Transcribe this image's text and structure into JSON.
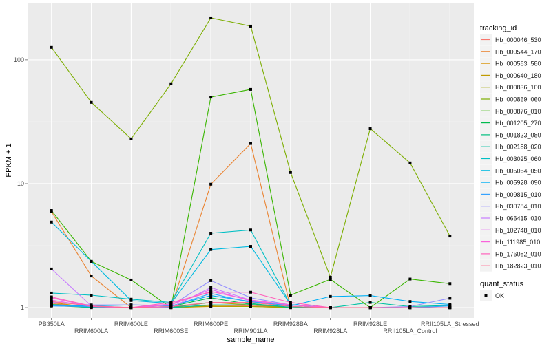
{
  "chart_data": {
    "type": "line",
    "title": "",
    "xlabel": "sample_name",
    "ylabel": "FPKM + 1",
    "y_scale": "log10",
    "ylim": [
      0.826,
      285
    ],
    "y_ticks": [
      1,
      10,
      100
    ],
    "y_tick_labels": [
      "1",
      "10",
      "100"
    ],
    "grid": true,
    "legend_placement": "right",
    "categories": [
      "PB350LA",
      "RRIM600LA",
      "RRIM600LE",
      "RRIM600SE",
      "RRIM600PE",
      "RRIM901LA",
      "RRIM928BA",
      "RRIM928LA",
      "RRIM928LE",
      "RRII105LA_Control",
      "RRII105LA_Stressed"
    ],
    "legend_title": "tracking_id",
    "series": [
      {
        "name": "Hb_000046_530",
        "color": "#F8766D",
        "values": [
          1.08,
          1,
          1,
          1,
          1.05,
          1.03,
          1,
          1,
          1,
          1,
          1
        ]
      },
      {
        "name": "Hb_000544_170",
        "color": "#EA8331",
        "values": [
          5.94,
          1.8,
          1,
          1,
          9.9,
          21.1,
          1,
          1,
          1,
          1,
          1
        ]
      },
      {
        "name": "Hb_000563_580",
        "color": "#D89000",
        "values": [
          1.1,
          1,
          1,
          1,
          1.02,
          1.02,
          1,
          1,
          1,
          1,
          1
        ]
      },
      {
        "name": "Hb_000640_180",
        "color": "#C09B00",
        "values": [
          1.05,
          1.02,
          1,
          1,
          1.1,
          1.05,
          1,
          1,
          1,
          1,
          1
        ]
      },
      {
        "name": "Hb_000836_100",
        "color": "#A3A500",
        "values": [
          1.04,
          1,
          1,
          1,
          1.03,
          1.02,
          1,
          1,
          1,
          1,
          1
        ]
      },
      {
        "name": "Hb_000869_060",
        "color": "#7CAE00",
        "values": [
          126,
          45.3,
          23,
          64,
          218,
          187,
          12.3,
          1.76,
          27.8,
          14.7,
          3.78
        ]
      },
      {
        "name": "Hb_000876_010",
        "color": "#39B600",
        "values": [
          6.07,
          2.36,
          1.67,
          1,
          50,
          57.7,
          1.26,
          1.69,
          1,
          1.7,
          1.56
        ]
      },
      {
        "name": "Hb_001205_270",
        "color": "#00BB4E",
        "values": [
          1.06,
          1.02,
          1,
          1.02,
          1.2,
          1.06,
          1.02,
          1,
          1,
          1,
          1
        ]
      },
      {
        "name": "Hb_001823_080",
        "color": "#00BF7D",
        "values": [
          1.04,
          1.01,
          1,
          1.01,
          1.1,
          1.08,
          1,
          1,
          1,
          1,
          1
        ]
      },
      {
        "name": "Hb_002188_020",
        "color": "#00C1A3",
        "values": [
          1.05,
          1,
          1,
          1,
          1.05,
          1.05,
          1.02,
          1,
          1.1,
          1.02,
          1.04
        ]
      },
      {
        "name": "Hb_003025_060",
        "color": "#00BFC4",
        "values": [
          1.31,
          1.26,
          1.17,
          1.1,
          3.98,
          4.23,
          1.05,
          1,
          1,
          1,
          1
        ]
      },
      {
        "name": "Hb_005054_050",
        "color": "#00BAE0",
        "values": [
          4.9,
          2.36,
          1.14,
          1.08,
          2.94,
          3.12,
          1.06,
          1,
          1,
          1,
          1
        ]
      },
      {
        "name": "Hb_005928_090",
        "color": "#00B0F6",
        "values": [
          1.04,
          1.03,
          1.05,
          1.03,
          1.25,
          1.12,
          1.03,
          1.23,
          1.25,
          1.12,
          1.06
        ]
      },
      {
        "name": "Hb_009815_010",
        "color": "#35A2FF",
        "values": [
          1.03,
          1.02,
          1,
          1.02,
          1.3,
          1.1,
          1.05,
          1,
          1,
          1,
          1.03
        ]
      },
      {
        "name": "Hb_030784_010",
        "color": "#9590FF",
        "values": [
          1.1,
          1.05,
          1.05,
          1.04,
          1.65,
          1.2,
          1.05,
          1,
          1,
          1.02,
          1.19
        ]
      },
      {
        "name": "Hb_066415_010",
        "color": "#C77CFF",
        "values": [
          2.05,
          1.03,
          1,
          1,
          1.45,
          1.15,
          1.05,
          1,
          1,
          1,
          1
        ]
      },
      {
        "name": "Hb_102748_010",
        "color": "#E76BF3",
        "values": [
          1.15,
          1.02,
          1,
          1.05,
          1.4,
          1.13,
          1.05,
          1,
          1,
          1,
          1
        ]
      },
      {
        "name": "Hb_111985_010",
        "color": "#FA62DB",
        "values": [
          1.2,
          1.02,
          1,
          1.07,
          1.35,
          1.15,
          1.05,
          1,
          1,
          1,
          1
        ]
      },
      {
        "name": "Hb_176082_010",
        "color": "#FF62BC",
        "values": [
          1.22,
          1.03,
          1,
          1.1,
          1.33,
          1.33,
          1.1,
          1,
          1,
          1,
          1
        ]
      },
      {
        "name": "Hb_182823_010",
        "color": "#FF6C91",
        "values": [
          1.12,
          1.03,
          1,
          1.02,
          1.1,
          1.1,
          1.02,
          1,
          1,
          1,
          1
        ]
      }
    ],
    "shape_legend_title": "quant_status",
    "shape_legend_items": [
      "OK"
    ]
  }
}
